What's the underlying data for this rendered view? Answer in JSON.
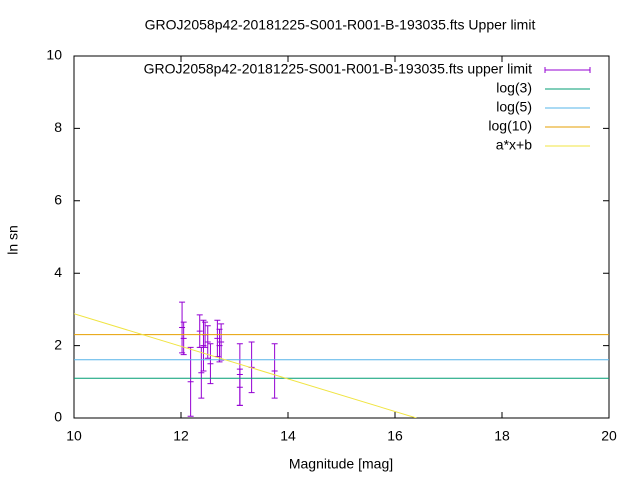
{
  "chart_data": {
    "type": "scatter",
    "title": "GROJ2058p42-20181225-S001-R001-B-193035.fts Upper limit",
    "xlabel": "Magnitude [mag]",
    "ylabel": "ln sn",
    "xlim": [
      10,
      20
    ],
    "xticks": [
      10,
      12,
      14,
      16,
      18,
      20
    ],
    "ylim": [
      0,
      10
    ],
    "yticks": [
      0,
      2,
      4,
      6,
      8,
      10
    ],
    "legend": "top-right",
    "series": [
      {
        "name": "GROJ2058p42-20181225-S001-R001-B-193035.fts upper limit",
        "color": "#9400d3",
        "style": "errorbars",
        "x": [
          12.02,
          12.05,
          12.18,
          12.35,
          12.38,
          12.42,
          12.45,
          12.5,
          12.55,
          12.68,
          12.72,
          12.75,
          13.1,
          13.1,
          13.32,
          13.75
        ],
        "values": [
          2.5,
          2.2,
          1.0,
          2.4,
          1.25,
          2.0,
          2.3,
          2.1,
          1.5,
          2.2,
          2.0,
          2.1,
          1.2,
          0.85,
          1.4,
          1.3
        ],
        "errors": [
          0.7,
          0.45,
          0.95,
          0.45,
          0.7,
          0.7,
          0.35,
          0.45,
          0.55,
          0.5,
          0.45,
          0.5,
          0.85,
          0.5,
          0.7,
          0.75
        ]
      },
      {
        "name": "log(3)",
        "color": "#009e73",
        "style": "line",
        "x": [
          10,
          20
        ],
        "values": [
          1.0986,
          1.0986
        ]
      },
      {
        "name": "log(5)",
        "color": "#56b4e9",
        "style": "line",
        "x": [
          10,
          20
        ],
        "values": [
          1.6094,
          1.6094
        ]
      },
      {
        "name": "log(10)",
        "color": "#e69f00",
        "style": "line",
        "x": [
          10,
          20
        ],
        "values": [
          2.3026,
          2.3026
        ]
      },
      {
        "name": "a*x+b",
        "color": "#f0e442",
        "style": "line",
        "x": [
          10,
          16.4
        ],
        "values": [
          2.88,
          0
        ]
      }
    ]
  }
}
